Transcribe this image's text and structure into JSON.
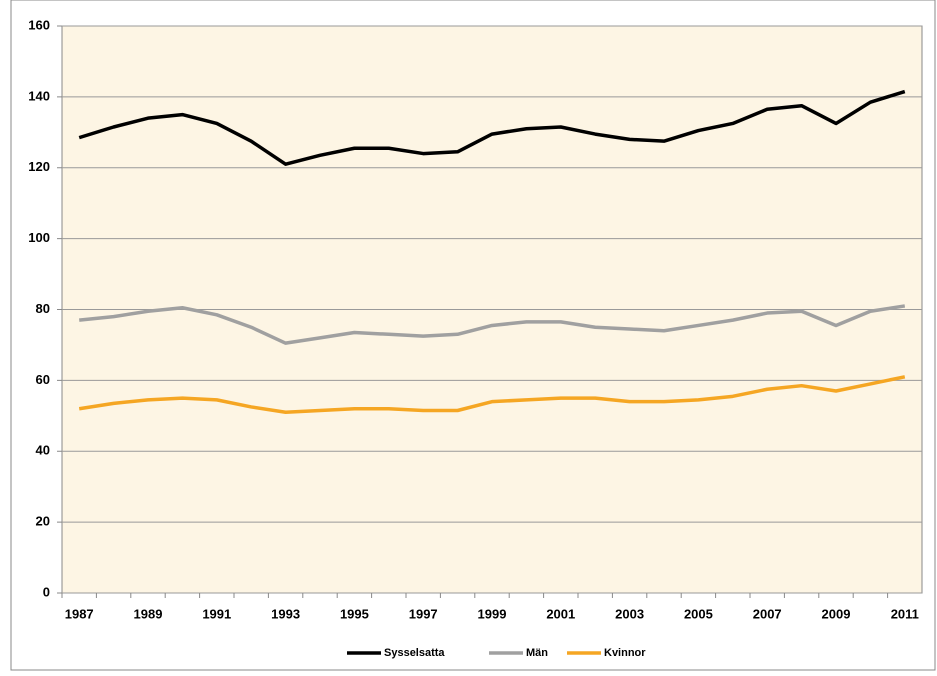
{
  "chart_data": {
    "type": "line",
    "categories": [
      "1987",
      null,
      "1989",
      null,
      "1991",
      null,
      "1993",
      null,
      "1995",
      null,
      "1997",
      null,
      "1999",
      null,
      "2001",
      null,
      "2003",
      null,
      "2005",
      null,
      "2007",
      null,
      "2009",
      null,
      "2011"
    ],
    "series": [
      {
        "name": "Sysselsatta",
        "color": "#000000",
        "values": [
          128.5,
          131.5,
          134,
          135,
          132.5,
          127.5,
          121,
          123.5,
          125.5,
          125.5,
          124,
          124.5,
          129.5,
          131,
          131.5,
          129.5,
          128,
          127.5,
          130.5,
          132.5,
          136.5,
          137.5,
          132.5,
          138.5,
          141.5
        ]
      },
      {
        "name": "Män",
        "color": "#a0a0a0",
        "values": [
          77,
          78,
          79.5,
          80.5,
          78.5,
          75,
          70.5,
          72,
          73.5,
          73,
          72.5,
          73,
          75.5,
          76.5,
          76.5,
          75,
          74.5,
          74,
          75.5,
          77,
          79,
          79.5,
          75.5,
          79.5,
          81
        ]
      },
      {
        "name": "Kvinnor",
        "color": "#f5a623",
        "values": [
          52,
          53.5,
          54.5,
          55,
          54.5,
          52.5,
          51,
          51.5,
          52,
          52,
          51.5,
          51.5,
          54,
          54.5,
          55,
          55,
          54,
          54,
          54.5,
          55.5,
          57.5,
          58.5,
          57,
          59,
          61
        ]
      }
    ],
    "ylim": [
      0,
      160
    ],
    "yticks": [
      0,
      20,
      40,
      60,
      80,
      100,
      120,
      140,
      160
    ],
    "grid": true,
    "legend": "bottom"
  }
}
